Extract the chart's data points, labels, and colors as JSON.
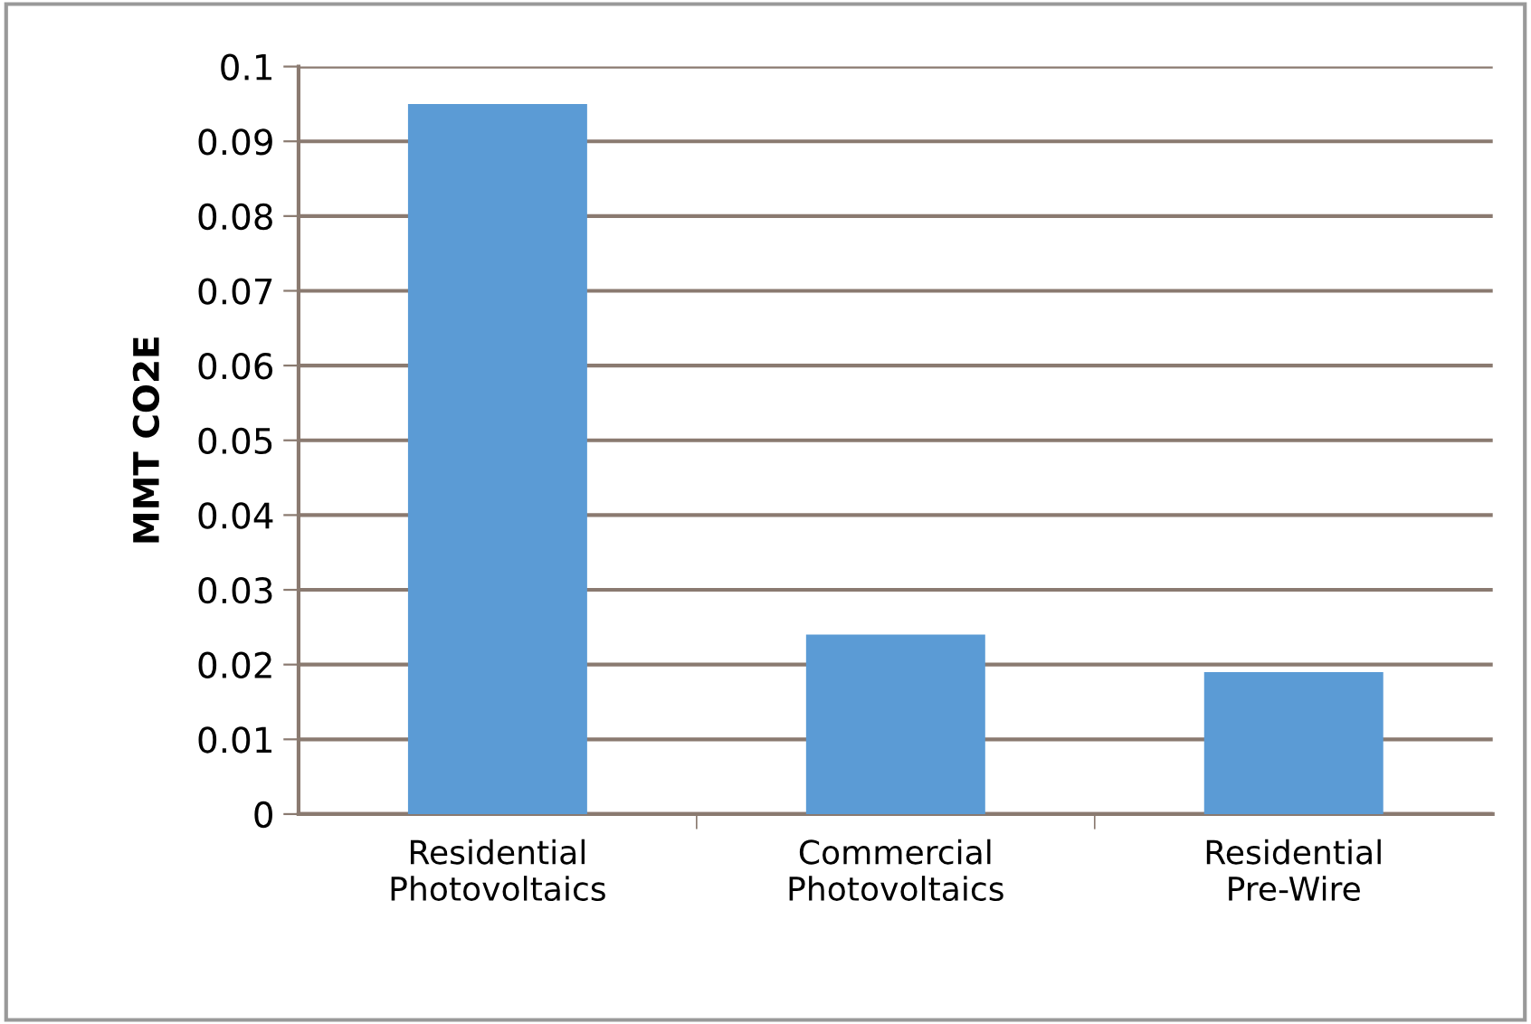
{
  "chart_data": {
    "type": "bar",
    "ylabel": "MMT CO2E",
    "categories": [
      "Residential\nPhotovoltaics",
      "Commercial\nPhotovoltaics",
      "Residential\nPre-Wire"
    ],
    "values": [
      0.095,
      0.024,
      0.019
    ],
    "color": "#5b9bd5",
    "ylim": [
      0,
      0.1
    ],
    "yticks": [
      {
        "value": 0,
        "label": "0"
      },
      0.01,
      0.02,
      0.03,
      0.04,
      0.05,
      0.06,
      0.07,
      0.08,
      0.09,
      0.1
    ],
    "grid": "y"
  }
}
